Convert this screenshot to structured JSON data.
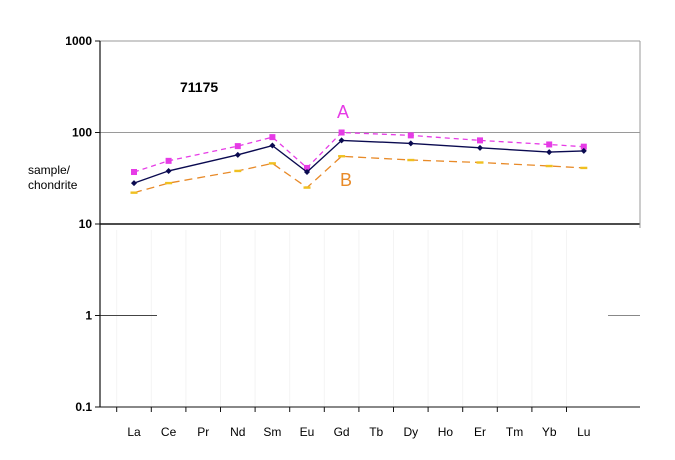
{
  "chart_data": {
    "type": "line",
    "title": "71175",
    "ylabel": [
      "sample/",
      "chondrite"
    ],
    "xlabel": "",
    "yscale": "log",
    "ylim": [
      0.1,
      1000
    ],
    "yticks": [
      "1000",
      "100",
      "10",
      "1",
      "0.1"
    ],
    "categories": [
      "La",
      "Ce",
      "Pr",
      "Nd",
      "Sm",
      "Eu",
      "Gd",
      "Tb",
      "Dy",
      "Ho",
      "Er",
      "Tm",
      "Yb",
      "Lu"
    ],
    "series": [
      {
        "name": "",
        "color": "#0a0a50",
        "style": "solid",
        "marker": "diamond",
        "values": [
          28,
          38,
          null,
          57,
          72,
          37,
          82,
          null,
          76,
          null,
          68,
          null,
          61,
          63
        ]
      },
      {
        "name": "A",
        "color": "#e63be6",
        "style": "dashed",
        "marker": "square",
        "values": [
          37,
          49,
          null,
          71,
          89,
          41,
          100,
          null,
          93,
          null,
          82,
          null,
          74,
          70
        ]
      },
      {
        "name": "B",
        "color": "#e88a28",
        "style": "dashed",
        "marker": "dash",
        "values": [
          22,
          28,
          null,
          38,
          46,
          25,
          55,
          null,
          50,
          null,
          47,
          null,
          43,
          41
        ]
      }
    ]
  }
}
